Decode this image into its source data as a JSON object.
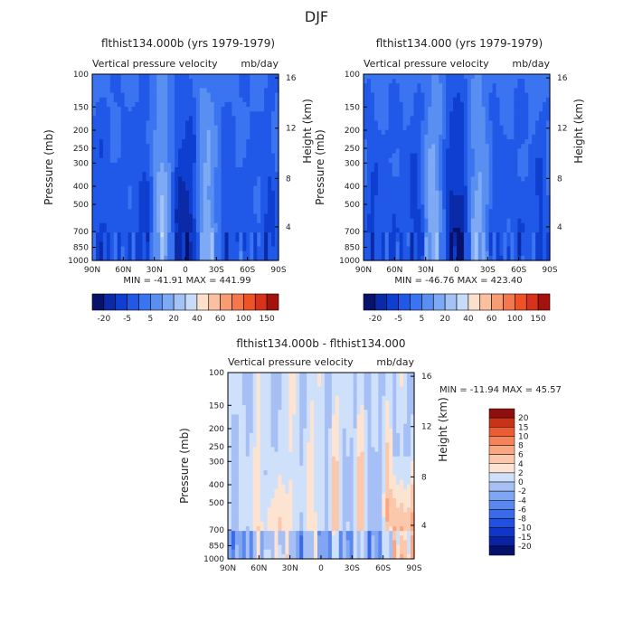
{
  "figure_title": "DJF",
  "colors": {
    "blue_scale": [
      "#08126b",
      "#0a2aa8",
      "#0f3fd0",
      "#2058e8",
      "#3b74f0",
      "#5a8ff2",
      "#7ea9f4",
      "#a3c3f6",
      "#c8dbf9",
      "#fde0cc",
      "#fbc0a0",
      "#f89c74",
      "#f5784c",
      "#ee5326",
      "#d8321a",
      "#a3120c"
    ],
    "diff_scale": [
      "#05106a",
      "#0a22a0",
      "#0f36c8",
      "#1f50e0",
      "#3a6aea",
      "#5a88ee",
      "#80a5f2",
      "#a6c0f6",
      "#cfe0fb",
      "#fde4d2",
      "#fbc8ac",
      "#f8a782",
      "#f4825a",
      "#ec5c33",
      "#c83217",
      "#8f0f0f"
    ]
  },
  "chart_data": [
    {
      "type": "heatmap",
      "title": "flthist134.000b (yrs 1979-1979)",
      "subtitle_left": "Vertical pressure velocity",
      "subtitle_right": "mb/day",
      "xlabel": "",
      "ylabel": "Pressure (mb)",
      "ylabel_right": "Height (km)",
      "x_ticks": [
        "90N",
        "60N",
        "30N",
        "0",
        "30S",
        "60S",
        "90S"
      ],
      "y_ticks": [
        "100",
        "150",
        "200",
        "250",
        "300",
        "400",
        "500",
        "700",
        "850",
        "1000"
      ],
      "y_right_ticks": [
        "16",
        "12",
        "8",
        "4"
      ],
      "stats": "MIN = -41.91   MAX = 441.99",
      "legend_labels": [
        "-20",
        "-5",
        "5",
        "20",
        "40",
        "60",
        "100",
        "150"
      ]
    },
    {
      "type": "heatmap",
      "title": "flthist134.000 (yrs 1979-1979)",
      "subtitle_left": "Vertical pressure velocity",
      "subtitle_right": "mb/day",
      "xlabel": "",
      "ylabel": "Pressure (mb)",
      "ylabel_right": "Height (km)",
      "x_ticks": [
        "90N",
        "60N",
        "30N",
        "0",
        "30S",
        "60S",
        "90S"
      ],
      "y_ticks": [
        "100",
        "150",
        "200",
        "250",
        "300",
        "400",
        "500",
        "700",
        "850",
        "1000"
      ],
      "y_right_ticks": [
        "16",
        "12",
        "8",
        "4"
      ],
      "stats": "MIN = -46.76   MAX = 423.40",
      "legend_labels": [
        "-20",
        "-5",
        "5",
        "20",
        "40",
        "60",
        "100",
        "150"
      ]
    },
    {
      "type": "heatmap",
      "title": "flthist134.000b - flthist134.000",
      "subtitle_left": "Vertical pressure velocity",
      "subtitle_right": "mb/day",
      "xlabel": "",
      "ylabel": "Pressure (mb)",
      "ylabel_right": "Height (km)",
      "x_ticks": [
        "90N",
        "60N",
        "30N",
        "0",
        "30S",
        "60S",
        "90S"
      ],
      "y_ticks": [
        "100",
        "150",
        "200",
        "250",
        "300",
        "400",
        "500",
        "700",
        "850",
        "1000"
      ],
      "y_right_ticks": [
        "16",
        "12",
        "8",
        "4"
      ],
      "stats": "MIN = -11.94   MAX =  45.57",
      "legend_labels": [
        "20",
        "15",
        "10",
        "8",
        "6",
        "4",
        "2",
        "0",
        "-2",
        "-4",
        "-6",
        "-8",
        "-10",
        "-15",
        "-20"
      ]
    }
  ]
}
